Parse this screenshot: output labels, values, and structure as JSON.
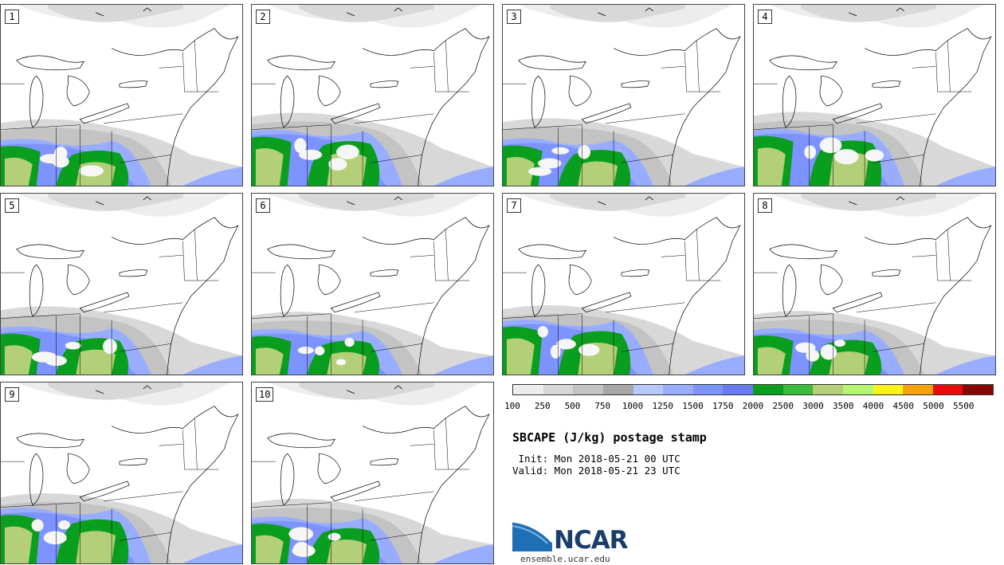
{
  "panels": [
    {
      "label": "1"
    },
    {
      "label": "2"
    },
    {
      "label": "3"
    },
    {
      "label": "4"
    },
    {
      "label": "5"
    },
    {
      "label": "6"
    },
    {
      "label": "7"
    },
    {
      "label": "8"
    },
    {
      "label": "9"
    },
    {
      "label": "10"
    }
  ],
  "colorbar": {
    "labels": [
      "100",
      "250",
      "500",
      "750",
      "1000",
      "1250",
      "1500",
      "1750",
      "2000",
      "2500",
      "3000",
      "3500",
      "4000",
      "4500",
      "5000",
      "5500"
    ],
    "colors": [
      "#ededed",
      "#d8d8d8",
      "#c3c3c3",
      "#a6a6a6",
      "#b7c8ff",
      "#98adff",
      "#7d93ff",
      "#6a7cf5",
      "#0a9e1e",
      "#3cbc3c",
      "#b3cf78",
      "#b6f56f",
      "#f9f31a",
      "#f5a40f",
      "#e80c0c",
      "#870505"
    ]
  },
  "title": "SBCAPE (J/kg) postage stamp",
  "init": " Init: Mon 2018-05-21 00 UTC",
  "valid": "Valid: Mon 2018-05-21 23 UTC",
  "logo": {
    "text": "NCAR",
    "site": "ensemble.ucar.edu"
  }
}
